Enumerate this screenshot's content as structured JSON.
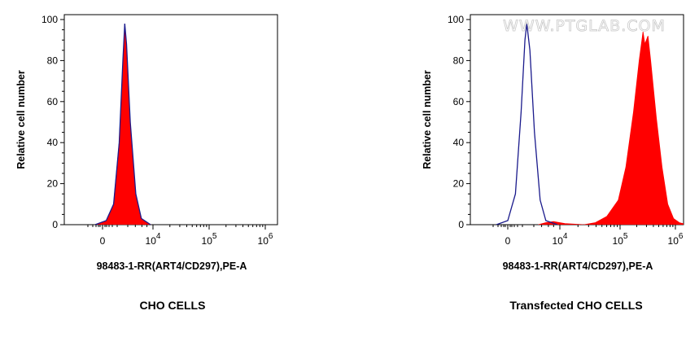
{
  "watermark": "WWW.PTGLAB.COM",
  "colors": {
    "fill": "#ff0000",
    "outline": "#1a1a8c",
    "axis": "#000000"
  },
  "chart_data": [
    {
      "type": "area",
      "title": "CHO CELLS",
      "xlabel": "98483-1-RR(ART4/CD297),PE-A",
      "ylabel": "Relative cell number",
      "ylim": [
        0,
        100
      ],
      "yticks": [
        "0",
        "20",
        "40",
        "60",
        "80",
        "100"
      ],
      "xtick_labels": [
        {
          "base": "0",
          "exp": ""
        },
        {
          "base": "10",
          "exp": "4"
        },
        {
          "base": "10",
          "exp": "5"
        },
        {
          "base": "10",
          "exp": "6"
        }
      ],
      "series": [
        {
          "role": "control",
          "style": "outline",
          "points": [
            [
              -0.2,
              0
            ],
            [
              0.1,
              2
            ],
            [
              0.3,
              10
            ],
            [
              0.45,
              40
            ],
            [
              0.55,
              80
            ],
            [
              0.6,
              98
            ],
            [
              0.65,
              88
            ],
            [
              0.75,
              50
            ],
            [
              0.9,
              15
            ],
            [
              1.05,
              3
            ],
            [
              1.3,
              0
            ]
          ]
        },
        {
          "role": "stained",
          "style": "filled",
          "points": [
            [
              -0.2,
              0
            ],
            [
              0.1,
              2
            ],
            [
              0.3,
              10
            ],
            [
              0.45,
              40
            ],
            [
              0.55,
              78
            ],
            [
              0.6,
              97
            ],
            [
              0.65,
              86
            ],
            [
              0.75,
              48
            ],
            [
              0.9,
              14
            ],
            [
              1.05,
              3
            ],
            [
              1.3,
              0
            ]
          ]
        }
      ]
    },
    {
      "type": "area",
      "title": "Transfected CHO CELLS",
      "xlabel": "98483-1-RR(ART4/CD297),PE-A",
      "ylabel": "Relative cell number",
      "ylim": [
        0,
        100
      ],
      "yticks": [
        "0",
        "20",
        "40",
        "60",
        "80",
        "100"
      ],
      "xtick_labels": [
        {
          "base": "0",
          "exp": ""
        },
        {
          "base": "10",
          "exp": "4"
        },
        {
          "base": "10",
          "exp": "5"
        },
        {
          "base": "10",
          "exp": "6"
        }
      ],
      "series": [
        {
          "role": "control",
          "style": "outline",
          "points": [
            [
              -0.3,
              0
            ],
            [
              0,
              2
            ],
            [
              0.2,
              15
            ],
            [
              0.35,
              55
            ],
            [
              0.45,
              90
            ],
            [
              0.5,
              98
            ],
            [
              0.58,
              85
            ],
            [
              0.7,
              45
            ],
            [
              0.85,
              12
            ],
            [
              1.0,
              2
            ],
            [
              1.3,
              0
            ]
          ]
        },
        {
          "role": "stained",
          "style": "filled",
          "points": [
            [
              0.8,
              0
            ],
            [
              1.0,
              1
            ],
            [
              1.2,
              1.5
            ],
            [
              1.5,
              0.5
            ],
            [
              2.0,
              0
            ],
            [
              2.3,
              1
            ],
            [
              2.6,
              4
            ],
            [
              2.9,
              12
            ],
            [
              3.1,
              28
            ],
            [
              3.3,
              55
            ],
            [
              3.45,
              80
            ],
            [
              3.55,
              94
            ],
            [
              3.6,
              88
            ],
            [
              3.68,
              92
            ],
            [
              3.75,
              80
            ],
            [
              3.9,
              52
            ],
            [
              4.05,
              28
            ],
            [
              4.2,
              10
            ],
            [
              4.35,
              3
            ],
            [
              4.5,
              1
            ],
            [
              4.7,
              0
            ],
            [
              5.4,
              0
            ],
            [
              5.5,
              1
            ],
            [
              5.56,
              2.5
            ]
          ]
        }
      ]
    }
  ]
}
